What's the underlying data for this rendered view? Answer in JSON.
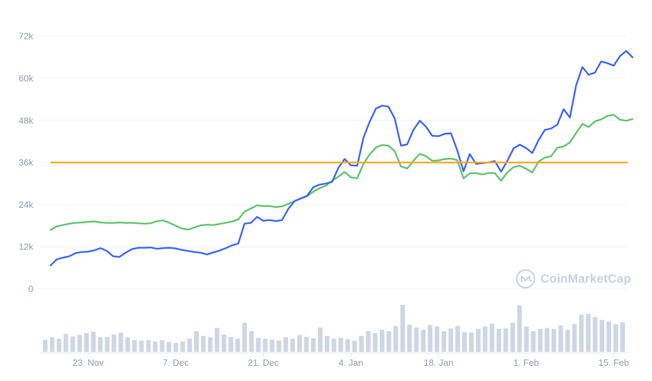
{
  "watermark": {
    "label": "CoinMarketCap"
  },
  "colors": {
    "blue_line": "#3861fb",
    "green_line": "#5cc36a",
    "reference_line": "#f4a71d",
    "volume_bar": "#cdd6e5",
    "gridline": "#eef1f6",
    "axis_line": "#e3e8ef",
    "tick_label": "#8b9cae",
    "watermark": "#c7d0df",
    "background": "#ffffff"
  },
  "chart_data": {
    "type": "line",
    "title": "",
    "legend": "none",
    "grid": true,
    "ylim_k": [
      0,
      72
    ],
    "y_ticks": [
      "72k",
      "60k",
      "48k",
      "36k",
      "24k",
      "12k",
      "0"
    ],
    "y_tick_values_k": [
      72,
      60,
      48,
      36,
      24,
      12,
      0
    ],
    "x_ticks": [
      "23. Nov",
      "7. Dec",
      "21. Dec",
      "4. Jan",
      "18. Jan",
      "1. Feb",
      "15. Feb"
    ],
    "x_tick_day_index": [
      6,
      20,
      34,
      48,
      62,
      76,
      90
    ],
    "reference_line_k": {
      "value": 36,
      "label": "36k",
      "color": "#f4a71d"
    },
    "series": [
      {
        "name": "price-blue",
        "color": "#3861fb",
        "unit": "thousands",
        "values_k": [
          6.7,
          8.4,
          8.9,
          9.3,
          10.2,
          10.5,
          10.6,
          11.0,
          11.6,
          10.8,
          9.3,
          9.1,
          10.3,
          11.3,
          11.7,
          11.7,
          11.8,
          11.4,
          11.6,
          11.7,
          11.5,
          11.1,
          10.8,
          10.5,
          10.3,
          9.8,
          10.4,
          10.9,
          11.6,
          12.4,
          12.9,
          18.6,
          18.8,
          20.5,
          19.4,
          19.6,
          19.3,
          19.6,
          22.8,
          25.0,
          25.8,
          26.5,
          29.0,
          29.7,
          30.0,
          30.5,
          34.5,
          37.0,
          35.2,
          35.1,
          43.0,
          47.6,
          51.4,
          52.2,
          51.9,
          48.6,
          40.8,
          41.2,
          45.3,
          47.9,
          46.2,
          43.6,
          43.5,
          44.2,
          44.3,
          39.5,
          33.5,
          38.4,
          35.6,
          35.8,
          36.0,
          36.4,
          33.4,
          36.5,
          40.0,
          41.1,
          40.1,
          38.7,
          42.4,
          45.3,
          45.7,
          46.8,
          51.2,
          48.8,
          58.0,
          63.2,
          61.0,
          61.6,
          64.8,
          64.3,
          63.6,
          66.3,
          67.8,
          66.0
        ]
      },
      {
        "name": "price-green",
        "color": "#5cc36a",
        "unit": "thousands",
        "values_k": [
          16.8,
          17.8,
          18.2,
          18.6,
          18.8,
          18.9,
          19.1,
          19.2,
          18.9,
          18.8,
          18.8,
          18.9,
          18.8,
          18.8,
          18.7,
          18.6,
          18.7,
          19.3,
          19.5,
          18.8,
          18.0,
          17.2,
          16.9,
          17.5,
          18.1,
          18.3,
          18.2,
          18.5,
          18.8,
          19.2,
          19.8,
          22.0,
          22.9,
          23.8,
          23.6,
          23.6,
          23.3,
          23.5,
          24.2,
          25.0,
          25.7,
          26.4,
          27.7,
          28.7,
          29.4,
          30.8,
          32.0,
          33.3,
          31.8,
          31.5,
          35.6,
          38.3,
          40.3,
          41.0,
          40.8,
          39.3,
          34.9,
          34.3,
          36.5,
          38.5,
          37.8,
          36.5,
          36.6,
          37.0,
          37.1,
          36.7,
          31.5,
          32.9,
          33.0,
          32.6,
          33.0,
          33.0,
          30.8,
          33.2,
          34.7,
          35.1,
          34.2,
          33.2,
          36.3,
          37.4,
          37.8,
          40.2,
          40.6,
          41.7,
          44.4,
          47.0,
          46.1,
          47.7,
          48.3,
          49.3,
          49.6,
          48.2,
          47.9,
          48.4
        ]
      }
    ],
    "volume_bars_pct": [
      26,
      31,
      28,
      38,
      33,
      36,
      40,
      43,
      31,
      32,
      37,
      41,
      31,
      25,
      24,
      25,
      22,
      25,
      21,
      19,
      22,
      28,
      44,
      34,
      31,
      51,
      37,
      32,
      28,
      62,
      44,
      30,
      28,
      26,
      24,
      31,
      28,
      36,
      32,
      29,
      52,
      34,
      28,
      30,
      27,
      24,
      34,
      44,
      40,
      47,
      44,
      55,
      100,
      58,
      52,
      47,
      57,
      54,
      44,
      50,
      55,
      42,
      41,
      49,
      54,
      60,
      49,
      50,
      62,
      99,
      54,
      44,
      49,
      51,
      49,
      56,
      47,
      59,
      79,
      81,
      74,
      68,
      65,
      59,
      63
    ],
    "watermark": "CoinMarketCap"
  }
}
